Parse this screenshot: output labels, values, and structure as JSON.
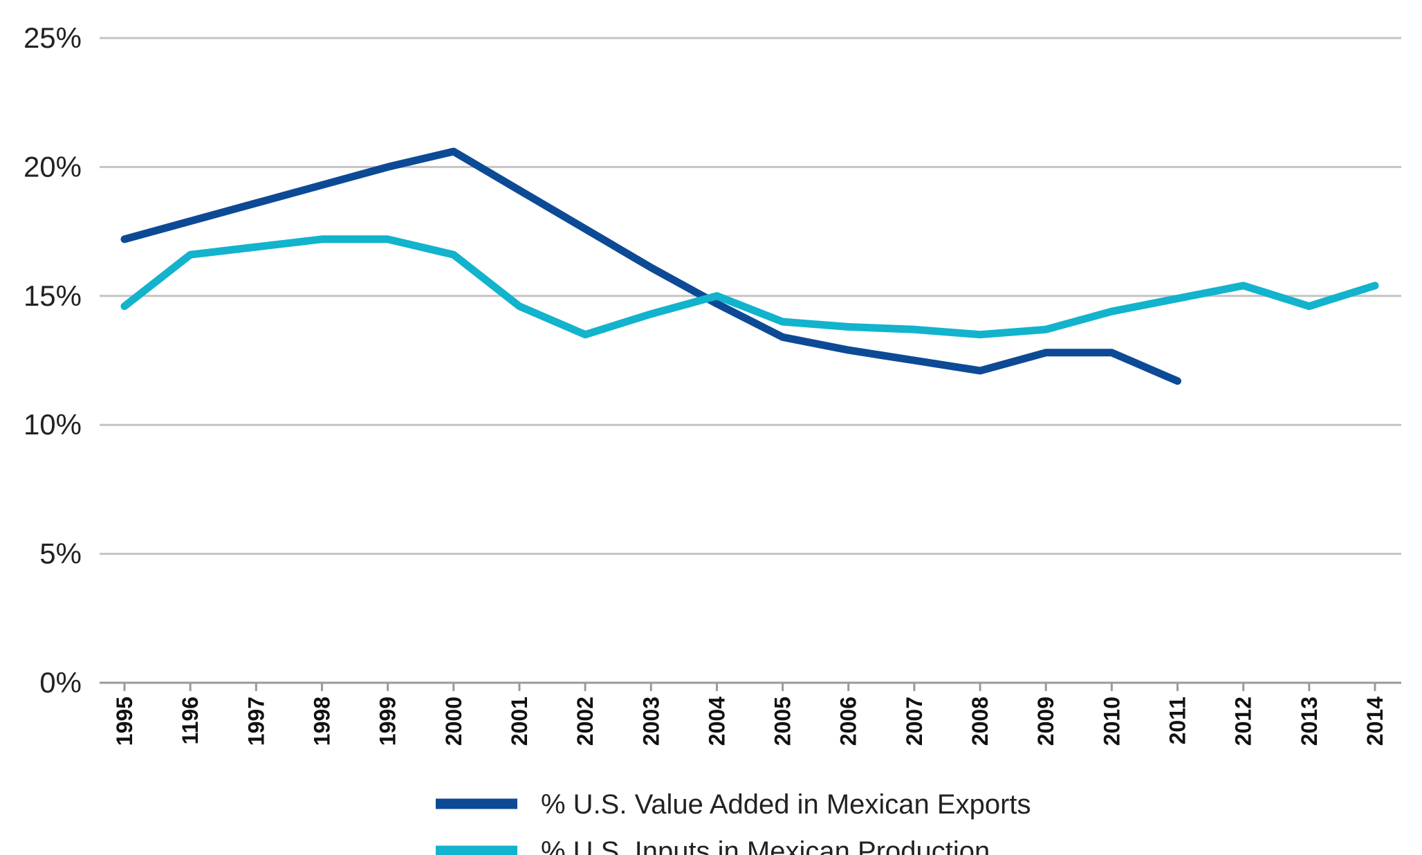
{
  "chart_data": {
    "type": "line",
    "title": "",
    "xlabel": "",
    "ylabel": "",
    "ylim": [
      0,
      25
    ],
    "y_ticks": [
      0,
      5,
      10,
      15,
      20,
      25
    ],
    "y_tick_labels": [
      "0%",
      "5%",
      "10%",
      "15%",
      "20%",
      "25%"
    ],
    "categories": [
      "1995",
      "1196",
      "1997",
      "1998",
      "1999",
      "2000",
      "2001",
      "2002",
      "2003",
      "2004",
      "2005",
      "2006",
      "2007",
      "2008",
      "2009",
      "2010",
      "2011",
      "2012",
      "2013",
      "2014"
    ],
    "grid": "horizontal",
    "legend_position": "bottom-center",
    "series": [
      {
        "name": "% U.S. Value Added in Mexican Exports",
        "color": "#0d4a96",
        "values": [
          17.2,
          17.9,
          18.6,
          19.3,
          20.0,
          20.6,
          19.1,
          17.6,
          16.1,
          14.7,
          13.4,
          12.9,
          12.5,
          12.1,
          12.8,
          12.8,
          11.7,
          null,
          null,
          null
        ]
      },
      {
        "name": "% U.S. Inputs in Mexican Production",
        "color": "#12b3cc",
        "values": [
          14.6,
          16.6,
          16.9,
          17.2,
          17.2,
          16.6,
          14.6,
          13.5,
          14.3,
          15.0,
          14.0,
          13.8,
          13.7,
          13.5,
          13.7,
          14.4,
          14.9,
          15.4,
          14.6,
          15.4
        ]
      }
    ]
  }
}
